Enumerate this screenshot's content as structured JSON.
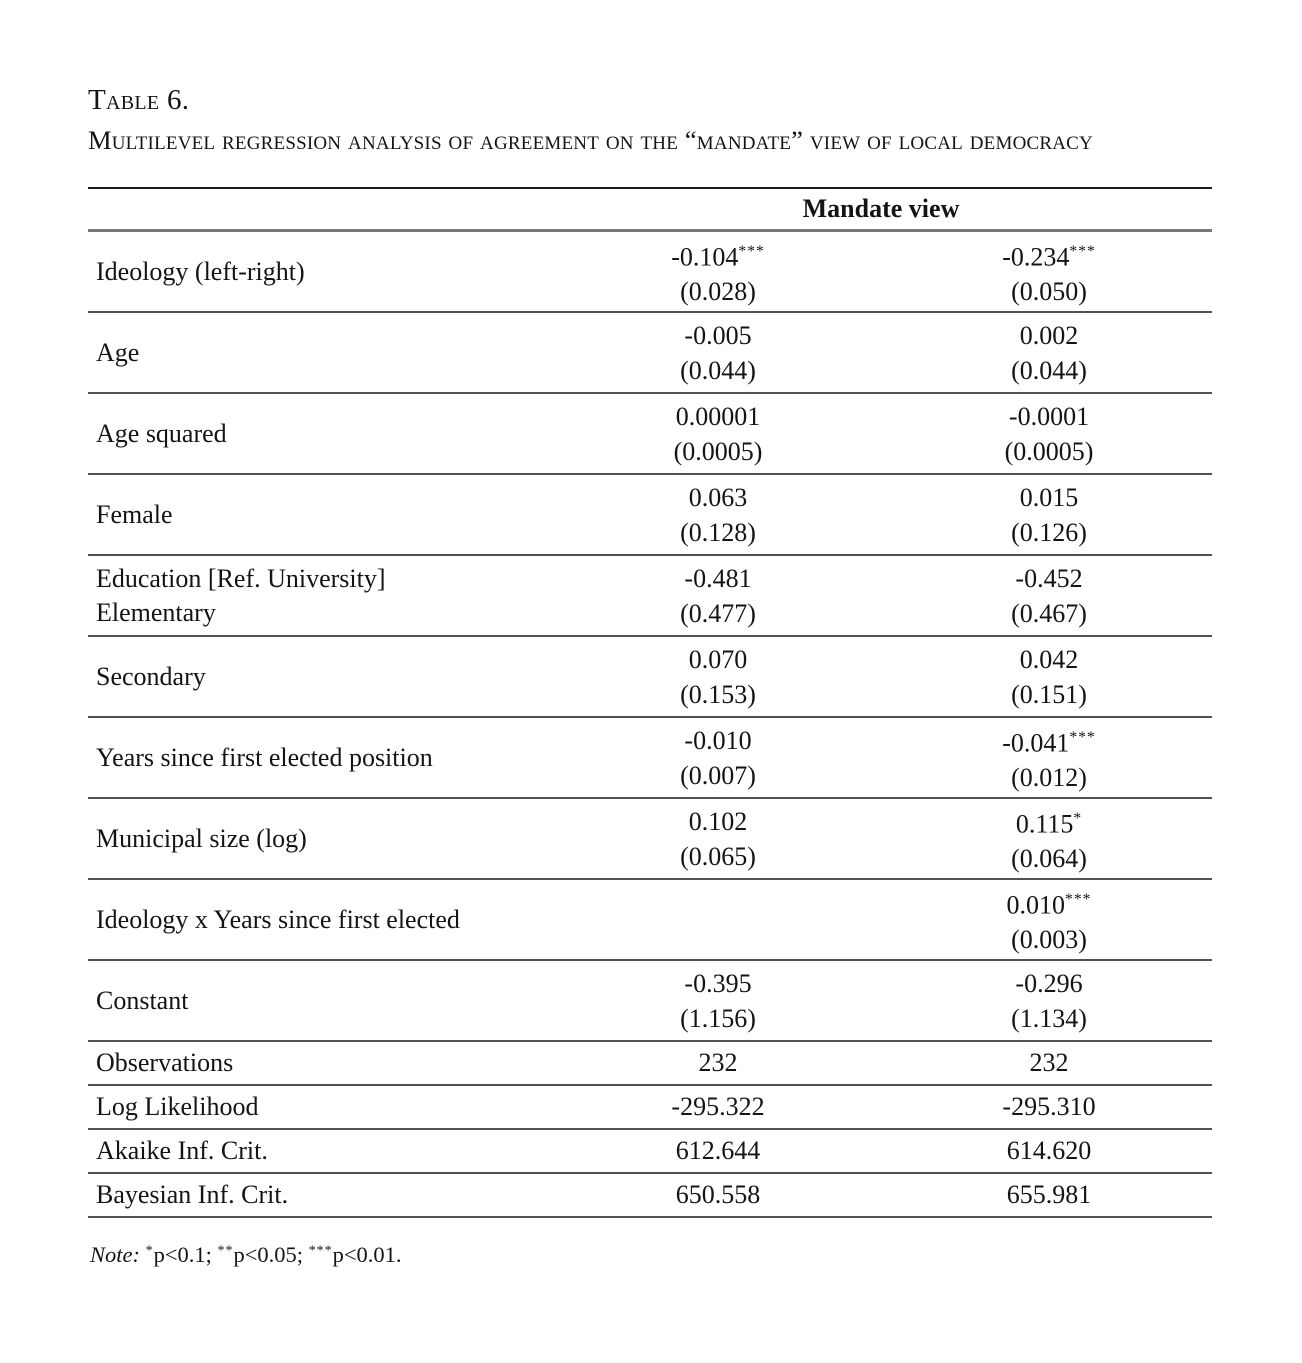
{
  "title": "Table 6.",
  "subtitle": "Multilevel regression analysis of agreement on the “mandate” view of local democracy",
  "table": {
    "header": "Mandate view",
    "rows": [
      {
        "label": "Ideology (left-right)",
        "label2": "",
        "m1c": "-0.104",
        "m1s": "***",
        "m1se": "(0.028)",
        "m2c": "-0.234",
        "m2s": "***",
        "m2se": "(0.050)"
      },
      {
        "label": "Age",
        "label2": "",
        "m1c": "-0.005",
        "m1s": "",
        "m1se": "(0.044)",
        "m2c": "0.002",
        "m2s": "",
        "m2se": "(0.044)"
      },
      {
        "label": "Age squared",
        "label2": "",
        "m1c": "0.00001",
        "m1s": "",
        "m1se": "(0.0005)",
        "m2c": "-0.0001",
        "m2s": "",
        "m2se": "(0.0005)"
      },
      {
        "label": "Female",
        "label2": "",
        "m1c": "0.063",
        "m1s": "",
        "m1se": "(0.128)",
        "m2c": "0.015",
        "m2s": "",
        "m2se": "(0.126)"
      },
      {
        "label": "Education [Ref. University]",
        "label2": "Elementary",
        "m1c": "-0.481",
        "m1s": "",
        "m1se": "(0.477)",
        "m2c": "-0.452",
        "m2s": "",
        "m2se": "(0.467)"
      },
      {
        "label": "Secondary",
        "label2": "",
        "m1c": "0.070",
        "m1s": "",
        "m1se": "(0.153)",
        "m2c": "0.042",
        "m2s": "",
        "m2se": "(0.151)"
      },
      {
        "label": "Years since first elected position",
        "label2": "",
        "m1c": "-0.010",
        "m1s": "",
        "m1se": "(0.007)",
        "m2c": "-0.041",
        "m2s": "***",
        "m2se": "(0.012)"
      },
      {
        "label": "Municipal size (log)",
        "label2": "",
        "m1c": "0.102",
        "m1s": "",
        "m1se": "(0.065)",
        "m2c": "0.115",
        "m2s": "*",
        "m2se": "(0.064)"
      },
      {
        "label": "Ideology x Years since first elected",
        "label2": "",
        "m1c": "",
        "m1s": "",
        "m1se": "",
        "m2c": "0.010",
        "m2s": "***",
        "m2se": "(0.003)"
      },
      {
        "label": "Constant",
        "label2": "",
        "m1c": "-0.395",
        "m1s": "",
        "m1se": "(1.156)",
        "m2c": "-0.296",
        "m2s": "",
        "m2se": "(1.134)"
      }
    ],
    "stats": [
      {
        "label": "Observations",
        "m1": "232",
        "m2": "232"
      },
      {
        "label": "Log Likelihood",
        "m1": "-295.322",
        "m2": "-295.310"
      },
      {
        "label": "Akaike Inf. Crit.",
        "m1": "612.644",
        "m2": "614.620"
      },
      {
        "label": "Bayesian Inf. Crit.",
        "m1": "650.558",
        "m2": "655.981"
      }
    ]
  },
  "note": {
    "prefix": "Note:",
    "seg1_stars": "*",
    "seg1": "p<0.1;",
    "seg2_stars": "**",
    "seg2": "p<0.05;",
    "seg3_stars": "***",
    "seg3": "p<0.01."
  }
}
